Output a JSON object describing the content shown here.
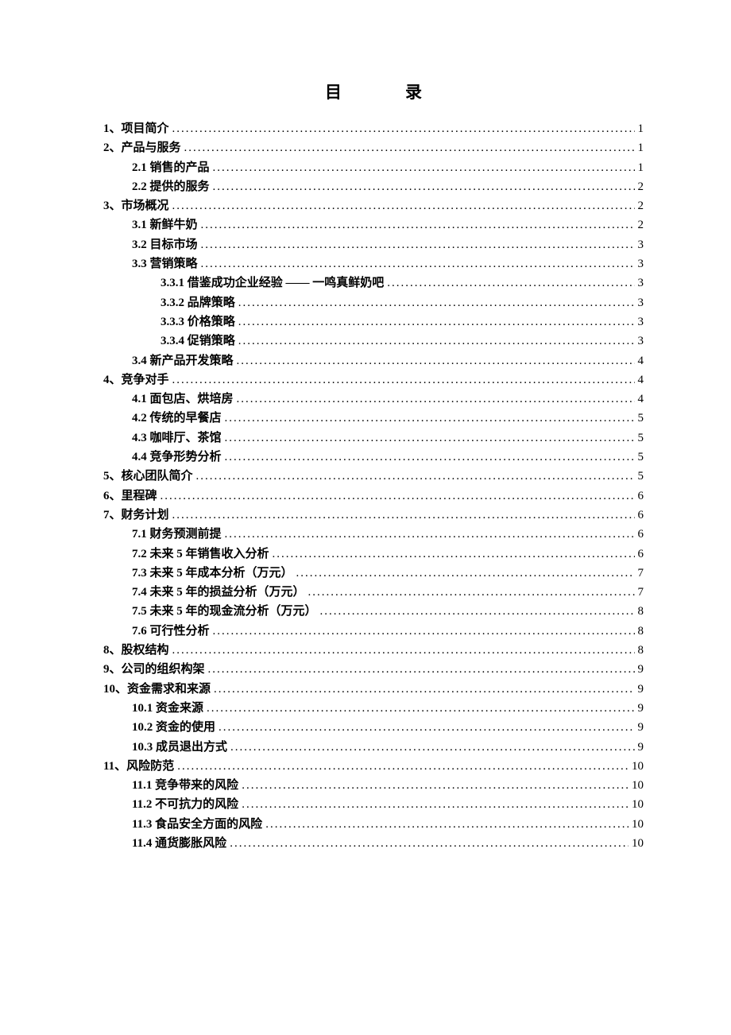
{
  "title": "目录",
  "text_color": "#000000",
  "background_color": "#ffffff",
  "font_family": "SimSun",
  "title_fontsize": 21,
  "entry_fontsize": 15,
  "entries": [
    {
      "level": 1,
      "label": "1、项目简介",
      "page": "1"
    },
    {
      "level": 1,
      "label": "2、产品与服务",
      "page": "1"
    },
    {
      "level": 2,
      "label": "2.1 销售的产品",
      "page": "1"
    },
    {
      "level": 2,
      "label": "2.2 提供的服务",
      "page": "2"
    },
    {
      "level": 1,
      "label": "3、市场概况",
      "page": "2"
    },
    {
      "level": 2,
      "label": "3.1 新鲜牛奶",
      "page": "2"
    },
    {
      "level": 2,
      "label": "3.2 目标市场",
      "page": "3"
    },
    {
      "level": 2,
      "label": "3.3 营销策略",
      "page": "3"
    },
    {
      "level": 3,
      "label": "3.3.1 借鉴成功企业经验 —— 一鸣真鲜奶吧",
      "page": "3"
    },
    {
      "level": 3,
      "label": "3.3.2 品牌策略",
      "page": "3"
    },
    {
      "level": 3,
      "label": "3.3.3 价格策略",
      "page": "3"
    },
    {
      "level": 3,
      "label": "3.3.4 促销策略",
      "page": "3"
    },
    {
      "level": 2,
      "label": "3.4 新产品开发策略",
      "page": "4"
    },
    {
      "level": 1,
      "label": "4、竞争对手",
      "page": "4"
    },
    {
      "level": 2,
      "label": "4.1 面包店、烘培房",
      "page": "4"
    },
    {
      "level": 2,
      "label": "4.2 传统的早餐店",
      "page": "5"
    },
    {
      "level": 2,
      "label": "4.3 咖啡厅、茶馆",
      "page": "5"
    },
    {
      "level": 2,
      "label": "4.4 竞争形势分析",
      "page": "5"
    },
    {
      "level": 1,
      "label": "5、核心团队简介",
      "page": "5"
    },
    {
      "level": 1,
      "label": "6、里程碑",
      "page": "6"
    },
    {
      "level": 1,
      "label": "7、财务计划",
      "page": "6"
    },
    {
      "level": 2,
      "label": "7.1 财务预测前提",
      "page": "6"
    },
    {
      "level": 2,
      "label": "7.2 未来 5 年销售收入分析",
      "page": "6"
    },
    {
      "level": 2,
      "label": "7.3 未来 5 年成本分析（万元）",
      "page": "7"
    },
    {
      "level": 2,
      "label": "7.4 未来 5 年的损益分析（万元）",
      "page": "7"
    },
    {
      "level": 2,
      "label": "7.5 未来 5 年的现金流分析（万元）",
      "page": "8"
    },
    {
      "level": 2,
      "label": "7.6 可行性分析",
      "page": "8"
    },
    {
      "level": 1,
      "label": "8、股权结构",
      "page": "8"
    },
    {
      "level": 1,
      "label": "9、公司的组织构架",
      "page": "9"
    },
    {
      "level": 1,
      "label": "10、资金需求和来源",
      "page": "9"
    },
    {
      "level": 2,
      "label": "10.1 资金来源",
      "page": "9"
    },
    {
      "level": 2,
      "label": "10.2 资金的使用",
      "page": "9"
    },
    {
      "level": 2,
      "label": "10.3 成员退出方式",
      "page": "9"
    },
    {
      "level": 1,
      "label": "11、风险防范",
      "page": "10"
    },
    {
      "level": 2,
      "label": "11.1 竞争带来的风险",
      "page": "10"
    },
    {
      "level": 2,
      "label": "11.2 不可抗力的风险",
      "page": "10"
    },
    {
      "level": 2,
      "label": "11.3 食品安全方面的风险",
      "page": "10"
    },
    {
      "level": 2,
      "label": "11.4 通货膨胀风险",
      "page": "10"
    }
  ]
}
